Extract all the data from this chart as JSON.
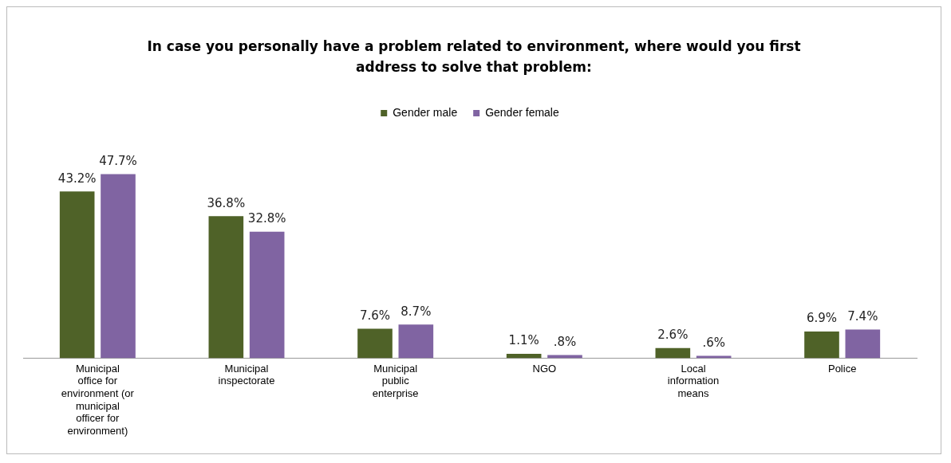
{
  "chart_data": {
    "type": "bar",
    "title": "In case you personally have a problem related to environment, where would you first address to solve that problem:",
    "categories": [
      "Municipal office for environment (or municipal officer for environment)",
      "Municipal inspectorate",
      "Municipal public enterprise",
      "NGO",
      "Local information means",
      "Police"
    ],
    "series": [
      {
        "name": "Gender male",
        "color": "#4f6228",
        "values": [
          43.2,
          36.8,
          7.6,
          1.1,
          2.6,
          6.9
        ],
        "value_labels": [
          "43.2%",
          "36.8%",
          "7.6%",
          "1.1%",
          "2.6%",
          "6.9%"
        ]
      },
      {
        "name": "Gender female",
        "color": "#8064a2",
        "values": [
          47.7,
          32.8,
          8.7,
          0.8,
          0.6,
          7.4
        ],
        "value_labels": [
          "47.7%",
          "32.8%",
          "8.7%",
          ".8%",
          ".6%",
          "7.4%"
        ]
      }
    ],
    "legend": "top",
    "grid": false
  }
}
